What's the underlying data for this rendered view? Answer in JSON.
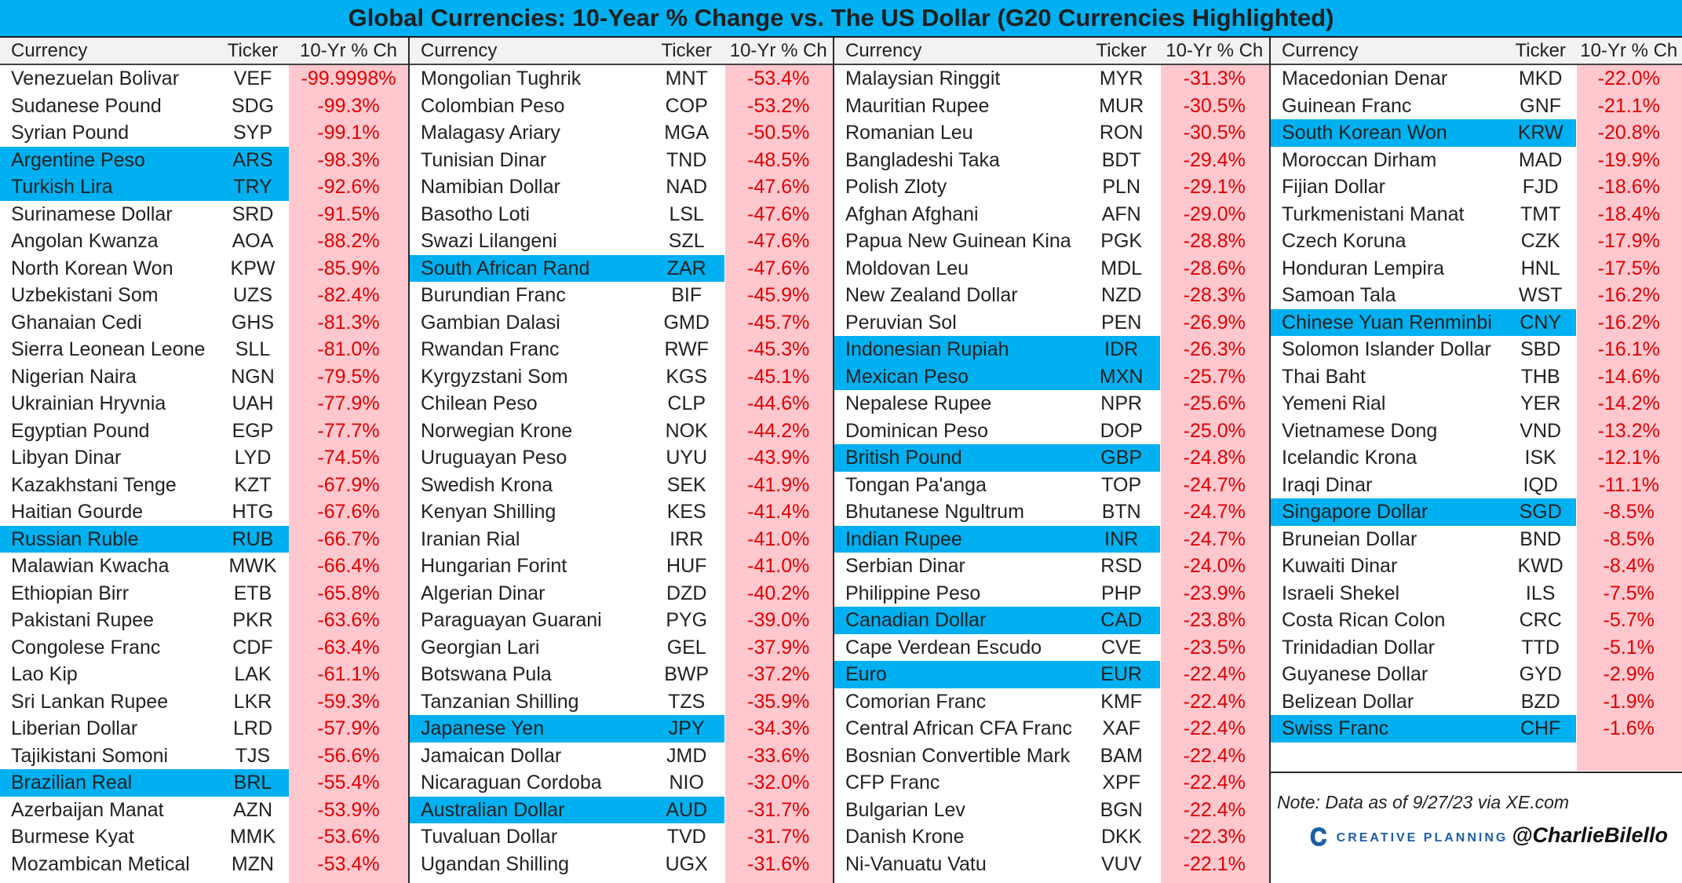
{
  "chart_data": {
    "type": "table",
    "title": "Global Currencies: 10-Year % Change vs. The US Dollar (G20 Currencies Highlighted)",
    "columns": [
      "Currency",
      "Ticker",
      "10-Yr % Ch"
    ],
    "colors": {
      "g20_highlight": "#00b0f0",
      "change_band": "#ffc7ce",
      "change_text": "#e00000"
    },
    "note": "Note: Data as of 9/27/23 via XE.com",
    "brand": "CREATIVE PLANNING",
    "handle": "@CharlieBilello",
    "panels": [
      {
        "rows": [
          {
            "currency": "Venezuelan Bolivar",
            "ticker": "VEF",
            "change": "-99.9998%",
            "g20": false
          },
          {
            "currency": "Sudanese Pound",
            "ticker": "SDG",
            "change": "-99.3%",
            "g20": false
          },
          {
            "currency": "Syrian Pound",
            "ticker": "SYP",
            "change": "-99.1%",
            "g20": false
          },
          {
            "currency": "Argentine Peso",
            "ticker": "ARS",
            "change": "-98.3%",
            "g20": true
          },
          {
            "currency": "Turkish Lira",
            "ticker": "TRY",
            "change": "-92.6%",
            "g20": true
          },
          {
            "currency": "Surinamese Dollar",
            "ticker": "SRD",
            "change": "-91.5%",
            "g20": false
          },
          {
            "currency": "Angolan Kwanza",
            "ticker": "AOA",
            "change": "-88.2%",
            "g20": false
          },
          {
            "currency": "North Korean Won",
            "ticker": "KPW",
            "change": "-85.9%",
            "g20": false
          },
          {
            "currency": "Uzbekistani Som",
            "ticker": "UZS",
            "change": "-82.4%",
            "g20": false
          },
          {
            "currency": "Ghanaian Cedi",
            "ticker": "GHS",
            "change": "-81.3%",
            "g20": false
          },
          {
            "currency": "Sierra Leonean Leone",
            "ticker": "SLL",
            "change": "-81.0%",
            "g20": false
          },
          {
            "currency": "Nigerian Naira",
            "ticker": "NGN",
            "change": "-79.5%",
            "g20": false
          },
          {
            "currency": "Ukrainian Hryvnia",
            "ticker": "UAH",
            "change": "-77.9%",
            "g20": false
          },
          {
            "currency": "Egyptian Pound",
            "ticker": "EGP",
            "change": "-77.7%",
            "g20": false
          },
          {
            "currency": "Libyan Dinar",
            "ticker": "LYD",
            "change": "-74.5%",
            "g20": false
          },
          {
            "currency": "Kazakhstani Tenge",
            "ticker": "KZT",
            "change": "-67.9%",
            "g20": false
          },
          {
            "currency": "Haitian Gourde",
            "ticker": "HTG",
            "change": "-67.6%",
            "g20": false
          },
          {
            "currency": "Russian Ruble",
            "ticker": "RUB",
            "change": "-66.7%",
            "g20": true
          },
          {
            "currency": "Malawian Kwacha",
            "ticker": "MWK",
            "change": "-66.4%",
            "g20": false
          },
          {
            "currency": "Ethiopian Birr",
            "ticker": "ETB",
            "change": "-65.8%",
            "g20": false
          },
          {
            "currency": "Pakistani Rupee",
            "ticker": "PKR",
            "change": "-63.6%",
            "g20": false
          },
          {
            "currency": "Congolese Franc",
            "ticker": "CDF",
            "change": "-63.4%",
            "g20": false
          },
          {
            "currency": "Lao Kip",
            "ticker": "LAK",
            "change": "-61.1%",
            "g20": false
          },
          {
            "currency": "Sri Lankan Rupee",
            "ticker": "LKR",
            "change": "-59.3%",
            "g20": false
          },
          {
            "currency": "Liberian Dollar",
            "ticker": "LRD",
            "change": "-57.9%",
            "g20": false
          },
          {
            "currency": "Tajikistani Somoni",
            "ticker": "TJS",
            "change": "-56.6%",
            "g20": false
          },
          {
            "currency": "Brazilian Real",
            "ticker": "BRL",
            "change": "-55.4%",
            "g20": true
          },
          {
            "currency": "Azerbaijan Manat",
            "ticker": "AZN",
            "change": "-53.9%",
            "g20": false
          },
          {
            "currency": "Burmese Kyat",
            "ticker": "MMK",
            "change": "-53.6%",
            "g20": false
          },
          {
            "currency": "Mozambican Metical",
            "ticker": "MZN",
            "change": "-53.4%",
            "g20": false
          }
        ]
      },
      {
        "rows": [
          {
            "currency": "Mongolian Tughrik",
            "ticker": "MNT",
            "change": "-53.4%",
            "g20": false
          },
          {
            "currency": "Colombian Peso",
            "ticker": "COP",
            "change": "-53.2%",
            "g20": false
          },
          {
            "currency": "Malagasy Ariary",
            "ticker": "MGA",
            "change": "-50.5%",
            "g20": false
          },
          {
            "currency": "Tunisian Dinar",
            "ticker": "TND",
            "change": "-48.5%",
            "g20": false
          },
          {
            "currency": "Namibian Dollar",
            "ticker": "NAD",
            "change": "-47.6%",
            "g20": false
          },
          {
            "currency": "Basotho Loti",
            "ticker": "LSL",
            "change": "-47.6%",
            "g20": false
          },
          {
            "currency": "Swazi Lilangeni",
            "ticker": "SZL",
            "change": "-47.6%",
            "g20": false
          },
          {
            "currency": "South African Rand",
            "ticker": "ZAR",
            "change": "-47.6%",
            "g20": true
          },
          {
            "currency": "Burundian Franc",
            "ticker": "BIF",
            "change": "-45.9%",
            "g20": false
          },
          {
            "currency": "Gambian Dalasi",
            "ticker": "GMD",
            "change": "-45.7%",
            "g20": false
          },
          {
            "currency": "Rwandan Franc",
            "ticker": "RWF",
            "change": "-45.3%",
            "g20": false
          },
          {
            "currency": "Kyrgyzstani Som",
            "ticker": "KGS",
            "change": "-45.1%",
            "g20": false
          },
          {
            "currency": "Chilean Peso",
            "ticker": "CLP",
            "change": "-44.6%",
            "g20": false
          },
          {
            "currency": "Norwegian Krone",
            "ticker": "NOK",
            "change": "-44.2%",
            "g20": false
          },
          {
            "currency": "Uruguayan Peso",
            "ticker": "UYU",
            "change": "-43.9%",
            "g20": false
          },
          {
            "currency": "Swedish Krona",
            "ticker": "SEK",
            "change": "-41.9%",
            "g20": false
          },
          {
            "currency": "Kenyan Shilling",
            "ticker": "KES",
            "change": "-41.4%",
            "g20": false
          },
          {
            "currency": "Iranian Rial",
            "ticker": "IRR",
            "change": "-41.0%",
            "g20": false
          },
          {
            "currency": "Hungarian Forint",
            "ticker": "HUF",
            "change": "-41.0%",
            "g20": false
          },
          {
            "currency": "Algerian Dinar",
            "ticker": "DZD",
            "change": "-40.2%",
            "g20": false
          },
          {
            "currency": "Paraguayan Guarani",
            "ticker": "PYG",
            "change": "-39.0%",
            "g20": false
          },
          {
            "currency": "Georgian Lari",
            "ticker": "GEL",
            "change": "-37.9%",
            "g20": false
          },
          {
            "currency": "Botswana Pula",
            "ticker": "BWP",
            "change": "-37.2%",
            "g20": false
          },
          {
            "currency": "Tanzanian Shilling",
            "ticker": "TZS",
            "change": "-35.9%",
            "g20": false
          },
          {
            "currency": "Japanese Yen",
            "ticker": "JPY",
            "change": "-34.3%",
            "g20": true
          },
          {
            "currency": "Jamaican Dollar",
            "ticker": "JMD",
            "change": "-33.6%",
            "g20": false
          },
          {
            "currency": "Nicaraguan Cordoba",
            "ticker": "NIO",
            "change": "-32.0%",
            "g20": false
          },
          {
            "currency": "Australian Dollar",
            "ticker": "AUD",
            "change": "-31.7%",
            "g20": true
          },
          {
            "currency": "Tuvaluan Dollar",
            "ticker": "TVD",
            "change": "-31.7%",
            "g20": false
          },
          {
            "currency": "Ugandan Shilling",
            "ticker": "UGX",
            "change": "-31.6%",
            "g20": false
          }
        ]
      },
      {
        "rows": [
          {
            "currency": "Malaysian Ringgit",
            "ticker": "MYR",
            "change": "-31.3%",
            "g20": false
          },
          {
            "currency": "Mauritian Rupee",
            "ticker": "MUR",
            "change": "-30.5%",
            "g20": false
          },
          {
            "currency": "Romanian Leu",
            "ticker": "RON",
            "change": "-30.5%",
            "g20": false
          },
          {
            "currency": "Bangladeshi Taka",
            "ticker": "BDT",
            "change": "-29.4%",
            "g20": false
          },
          {
            "currency": "Polish Zloty",
            "ticker": "PLN",
            "change": "-29.1%",
            "g20": false
          },
          {
            "currency": "Afghan Afghani",
            "ticker": "AFN",
            "change": "-29.0%",
            "g20": false
          },
          {
            "currency": "Papua New Guinean Kina",
            "ticker": "PGK",
            "change": "-28.8%",
            "g20": false
          },
          {
            "currency": "Moldovan Leu",
            "ticker": "MDL",
            "change": "-28.6%",
            "g20": false
          },
          {
            "currency": "New Zealand Dollar",
            "ticker": "NZD",
            "change": "-28.3%",
            "g20": false
          },
          {
            "currency": "Peruvian Sol",
            "ticker": "PEN",
            "change": "-26.9%",
            "g20": false
          },
          {
            "currency": "Indonesian Rupiah",
            "ticker": "IDR",
            "change": "-26.3%",
            "g20": true
          },
          {
            "currency": "Mexican Peso",
            "ticker": "MXN",
            "change": "-25.7%",
            "g20": true
          },
          {
            "currency": "Nepalese Rupee",
            "ticker": "NPR",
            "change": "-25.6%",
            "g20": false
          },
          {
            "currency": "Dominican Peso",
            "ticker": "DOP",
            "change": "-25.0%",
            "g20": false
          },
          {
            "currency": "British Pound",
            "ticker": "GBP",
            "change": "-24.8%",
            "g20": true
          },
          {
            "currency": "Tongan Pa'anga",
            "ticker": "TOP",
            "change": "-24.7%",
            "g20": false
          },
          {
            "currency": "Bhutanese Ngultrum",
            "ticker": "BTN",
            "change": "-24.7%",
            "g20": false
          },
          {
            "currency": "Indian Rupee",
            "ticker": "INR",
            "change": "-24.7%",
            "g20": true
          },
          {
            "currency": "Serbian Dinar",
            "ticker": "RSD",
            "change": "-24.0%",
            "g20": false
          },
          {
            "currency": "Philippine Peso",
            "ticker": "PHP",
            "change": "-23.9%",
            "g20": false
          },
          {
            "currency": "Canadian Dollar",
            "ticker": "CAD",
            "change": "-23.8%",
            "g20": true
          },
          {
            "currency": "Cape Verdean Escudo",
            "ticker": "CVE",
            "change": "-23.5%",
            "g20": false
          },
          {
            "currency": "Euro",
            "ticker": "EUR",
            "change": "-22.4%",
            "g20": true
          },
          {
            "currency": "Comorian Franc",
            "ticker": "KMF",
            "change": "-22.4%",
            "g20": false
          },
          {
            "currency": "Central African CFA Franc",
            "ticker": "XAF",
            "change": "-22.4%",
            "g20": false
          },
          {
            "currency": "Bosnian Convertible Mark",
            "ticker": "BAM",
            "change": "-22.4%",
            "g20": false
          },
          {
            "currency": "CFP Franc",
            "ticker": "XPF",
            "change": "-22.4%",
            "g20": false
          },
          {
            "currency": "Bulgarian Lev",
            "ticker": "BGN",
            "change": "-22.4%",
            "g20": false
          },
          {
            "currency": "Danish Krone",
            "ticker": "DKK",
            "change": "-22.3%",
            "g20": false
          },
          {
            "currency": "Ni-Vanuatu Vatu",
            "ticker": "VUV",
            "change": "-22.1%",
            "g20": false
          }
        ]
      },
      {
        "rows": [
          {
            "currency": "Macedonian Denar",
            "ticker": "MKD",
            "change": "-22.0%",
            "g20": false
          },
          {
            "currency": "Guinean Franc",
            "ticker": "GNF",
            "change": "-21.1%",
            "g20": false
          },
          {
            "currency": "South Korean Won",
            "ticker": "KRW",
            "change": "-20.8%",
            "g20": true
          },
          {
            "currency": "Moroccan Dirham",
            "ticker": "MAD",
            "change": "-19.9%",
            "g20": false
          },
          {
            "currency": "Fijian Dollar",
            "ticker": "FJD",
            "change": "-18.6%",
            "g20": false
          },
          {
            "currency": "Turkmenistani Manat",
            "ticker": "TMT",
            "change": "-18.4%",
            "g20": false
          },
          {
            "currency": "Czech Koruna",
            "ticker": "CZK",
            "change": "-17.9%",
            "g20": false
          },
          {
            "currency": "Honduran Lempira",
            "ticker": "HNL",
            "change": "-17.5%",
            "g20": false
          },
          {
            "currency": "Samoan Tala",
            "ticker": "WST",
            "change": "-16.2%",
            "g20": false
          },
          {
            "currency": "Chinese Yuan Renminbi",
            "ticker": "CNY",
            "change": "-16.2%",
            "g20": true
          },
          {
            "currency": "Solomon Islander Dollar",
            "ticker": "SBD",
            "change": "-16.1%",
            "g20": false
          },
          {
            "currency": "Thai Baht",
            "ticker": "THB",
            "change": "-14.6%",
            "g20": false
          },
          {
            "currency": "Yemeni Rial",
            "ticker": "YER",
            "change": "-14.2%",
            "g20": false
          },
          {
            "currency": "Vietnamese Dong",
            "ticker": "VND",
            "change": "-13.2%",
            "g20": false
          },
          {
            "currency": "Icelandic Krona",
            "ticker": "ISK",
            "change": "-12.1%",
            "g20": false
          },
          {
            "currency": "Iraqi Dinar",
            "ticker": "IQD",
            "change": "-11.1%",
            "g20": false
          },
          {
            "currency": "Singapore Dollar",
            "ticker": "SGD",
            "change": "-8.5%",
            "g20": true
          },
          {
            "currency": "Bruneian Dollar",
            "ticker": "BND",
            "change": "-8.5%",
            "g20": false
          },
          {
            "currency": "Kuwaiti Dinar",
            "ticker": "KWD",
            "change": "-8.4%",
            "g20": false
          },
          {
            "currency": "Israeli Shekel",
            "ticker": "ILS",
            "change": "-7.5%",
            "g20": false
          },
          {
            "currency": "Costa Rican Colon",
            "ticker": "CRC",
            "change": "-5.7%",
            "g20": false
          },
          {
            "currency": "Trinidadian Dollar",
            "ticker": "TTD",
            "change": "-5.1%",
            "g20": false
          },
          {
            "currency": "Guyanese Dollar",
            "ticker": "GYD",
            "change": "-2.9%",
            "g20": false
          },
          {
            "currency": "Belizean Dollar",
            "ticker": "BZD",
            "change": "-1.9%",
            "g20": false
          },
          {
            "currency": "Swiss Franc",
            "ticker": "CHF",
            "change": "-1.6%",
            "g20": true
          }
        ]
      }
    ]
  }
}
